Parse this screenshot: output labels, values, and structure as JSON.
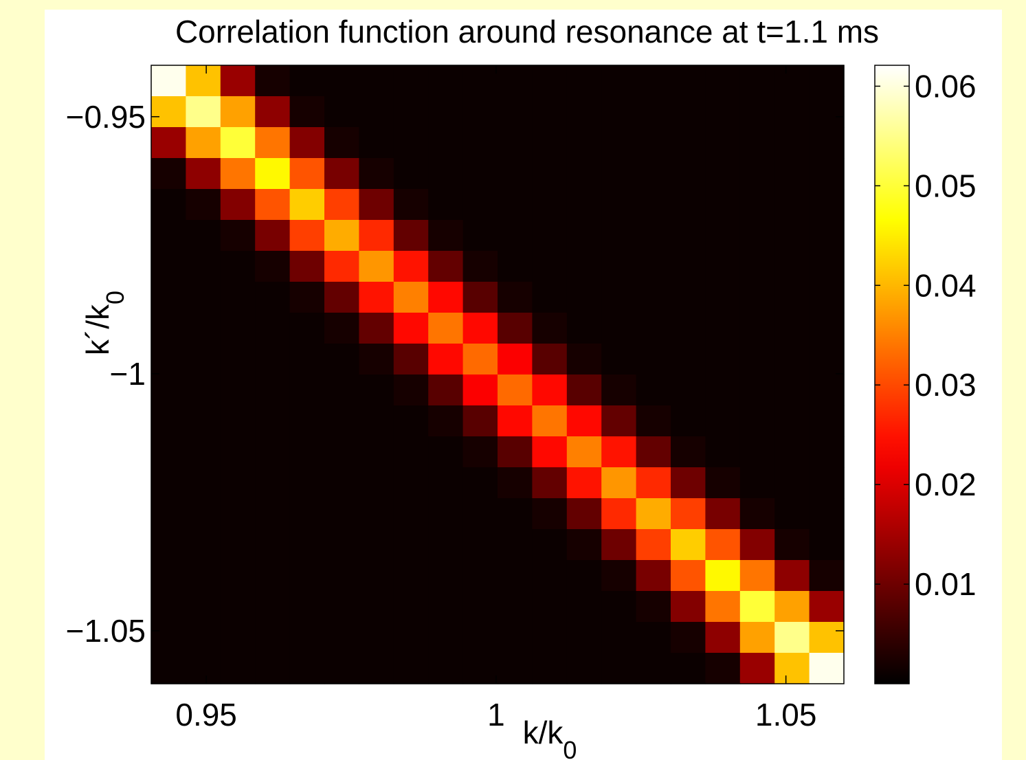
{
  "chart_data": {
    "type": "heatmap",
    "title": "Correlation function around resonance at t=1.1 ms",
    "xlabel": [
      "k/k",
      "0"
    ],
    "ylabel": [
      "k´/k",
      "0"
    ],
    "colormap": "hot",
    "xlim": [
      0.9405,
      1.06
    ],
    "ylim": [
      -1.0603,
      -0.94
    ],
    "clim": [
      0,
      0.0621
    ],
    "xticks": [
      0.95,
      1,
      1.05
    ],
    "yticks": [
      {
        "value": -0.95,
        "label": "−0.95"
      },
      {
        "value": -1,
        "label": "−1"
      },
      {
        "value": -1.05,
        "label": "−1.05"
      }
    ],
    "cticks": [
      0.01,
      0.02,
      0.03,
      0.04,
      0.05,
      0.06
    ],
    "z": [
      [
        0.061,
        0.041,
        0.014,
        0.002,
        0.001,
        0.001,
        0.001,
        0.001,
        0.001,
        0.001,
        0.001,
        0.001,
        0.001,
        0.001,
        0.001,
        0.001,
        0.001,
        0.001,
        0.001,
        0.001
      ],
      [
        0.041,
        0.055,
        0.038,
        0.013,
        0.002,
        0.001,
        0.001,
        0.001,
        0.001,
        0.001,
        0.001,
        0.001,
        0.001,
        0.001,
        0.001,
        0.001,
        0.001,
        0.001,
        0.001,
        0.001
      ],
      [
        0.014,
        0.038,
        0.05,
        0.034,
        0.012,
        0.002,
        0.001,
        0.001,
        0.001,
        0.001,
        0.001,
        0.001,
        0.001,
        0.001,
        0.001,
        0.001,
        0.001,
        0.001,
        0.001,
        0.001
      ],
      [
        0.002,
        0.013,
        0.034,
        0.046,
        0.031,
        0.011,
        0.002,
        0.001,
        0.001,
        0.001,
        0.001,
        0.001,
        0.001,
        0.001,
        0.001,
        0.001,
        0.001,
        0.001,
        0.001,
        0.001
      ],
      [
        0.001,
        0.002,
        0.012,
        0.031,
        0.042,
        0.029,
        0.01,
        0.002,
        0.001,
        0.001,
        0.001,
        0.001,
        0.001,
        0.001,
        0.001,
        0.001,
        0.001,
        0.001,
        0.001,
        0.001
      ],
      [
        0.001,
        0.001,
        0.002,
        0.011,
        0.029,
        0.039,
        0.027,
        0.009,
        0.002,
        0.001,
        0.001,
        0.001,
        0.001,
        0.001,
        0.001,
        0.001,
        0.001,
        0.001,
        0.001,
        0.001
      ],
      [
        0.001,
        0.001,
        0.001,
        0.002,
        0.01,
        0.027,
        0.037,
        0.025,
        0.009,
        0.002,
        0.001,
        0.001,
        0.001,
        0.001,
        0.001,
        0.001,
        0.001,
        0.001,
        0.001,
        0.001
      ],
      [
        0.001,
        0.001,
        0.001,
        0.001,
        0.002,
        0.009,
        0.025,
        0.035,
        0.024,
        0.008,
        0.002,
        0.001,
        0.001,
        0.001,
        0.001,
        0.001,
        0.001,
        0.001,
        0.001,
        0.001
      ],
      [
        0.001,
        0.001,
        0.001,
        0.001,
        0.001,
        0.002,
        0.009,
        0.024,
        0.034,
        0.024,
        0.008,
        0.002,
        0.001,
        0.001,
        0.001,
        0.001,
        0.001,
        0.001,
        0.001,
        0.001
      ],
      [
        0.001,
        0.001,
        0.001,
        0.001,
        0.001,
        0.001,
        0.002,
        0.008,
        0.024,
        0.033,
        0.023,
        0.008,
        0.002,
        0.001,
        0.001,
        0.001,
        0.001,
        0.001,
        0.001,
        0.001
      ],
      [
        0.001,
        0.001,
        0.001,
        0.001,
        0.001,
        0.001,
        0.001,
        0.002,
        0.008,
        0.023,
        0.033,
        0.024,
        0.008,
        0.002,
        0.001,
        0.001,
        0.001,
        0.001,
        0.001,
        0.001
      ],
      [
        0.001,
        0.001,
        0.001,
        0.001,
        0.001,
        0.001,
        0.001,
        0.001,
        0.002,
        0.008,
        0.024,
        0.034,
        0.024,
        0.009,
        0.002,
        0.001,
        0.001,
        0.001,
        0.001,
        0.001
      ],
      [
        0.001,
        0.001,
        0.001,
        0.001,
        0.001,
        0.001,
        0.001,
        0.001,
        0.001,
        0.002,
        0.008,
        0.024,
        0.035,
        0.025,
        0.009,
        0.002,
        0.001,
        0.001,
        0.001,
        0.001
      ],
      [
        0.001,
        0.001,
        0.001,
        0.001,
        0.001,
        0.001,
        0.001,
        0.001,
        0.001,
        0.001,
        0.002,
        0.009,
        0.025,
        0.037,
        0.027,
        0.01,
        0.002,
        0.001,
        0.001,
        0.001
      ],
      [
        0.001,
        0.001,
        0.001,
        0.001,
        0.001,
        0.001,
        0.001,
        0.001,
        0.001,
        0.001,
        0.001,
        0.002,
        0.009,
        0.027,
        0.039,
        0.029,
        0.011,
        0.002,
        0.001,
        0.001
      ],
      [
        0.001,
        0.001,
        0.001,
        0.001,
        0.001,
        0.001,
        0.001,
        0.001,
        0.001,
        0.001,
        0.001,
        0.001,
        0.002,
        0.01,
        0.029,
        0.042,
        0.031,
        0.012,
        0.002,
        0.001
      ],
      [
        0.001,
        0.001,
        0.001,
        0.001,
        0.001,
        0.001,
        0.001,
        0.001,
        0.001,
        0.001,
        0.001,
        0.001,
        0.001,
        0.002,
        0.011,
        0.031,
        0.046,
        0.034,
        0.013,
        0.002
      ],
      [
        0.001,
        0.001,
        0.001,
        0.001,
        0.001,
        0.001,
        0.001,
        0.001,
        0.001,
        0.001,
        0.001,
        0.001,
        0.001,
        0.001,
        0.002,
        0.012,
        0.034,
        0.05,
        0.038,
        0.014
      ],
      [
        0.001,
        0.001,
        0.001,
        0.001,
        0.001,
        0.001,
        0.001,
        0.001,
        0.001,
        0.001,
        0.001,
        0.001,
        0.001,
        0.001,
        0.001,
        0.002,
        0.013,
        0.038,
        0.055,
        0.041
      ],
      [
        0.001,
        0.001,
        0.001,
        0.001,
        0.001,
        0.001,
        0.001,
        0.001,
        0.001,
        0.001,
        0.001,
        0.001,
        0.001,
        0.001,
        0.001,
        0.001,
        0.002,
        0.014,
        0.041,
        0.061
      ]
    ]
  }
}
